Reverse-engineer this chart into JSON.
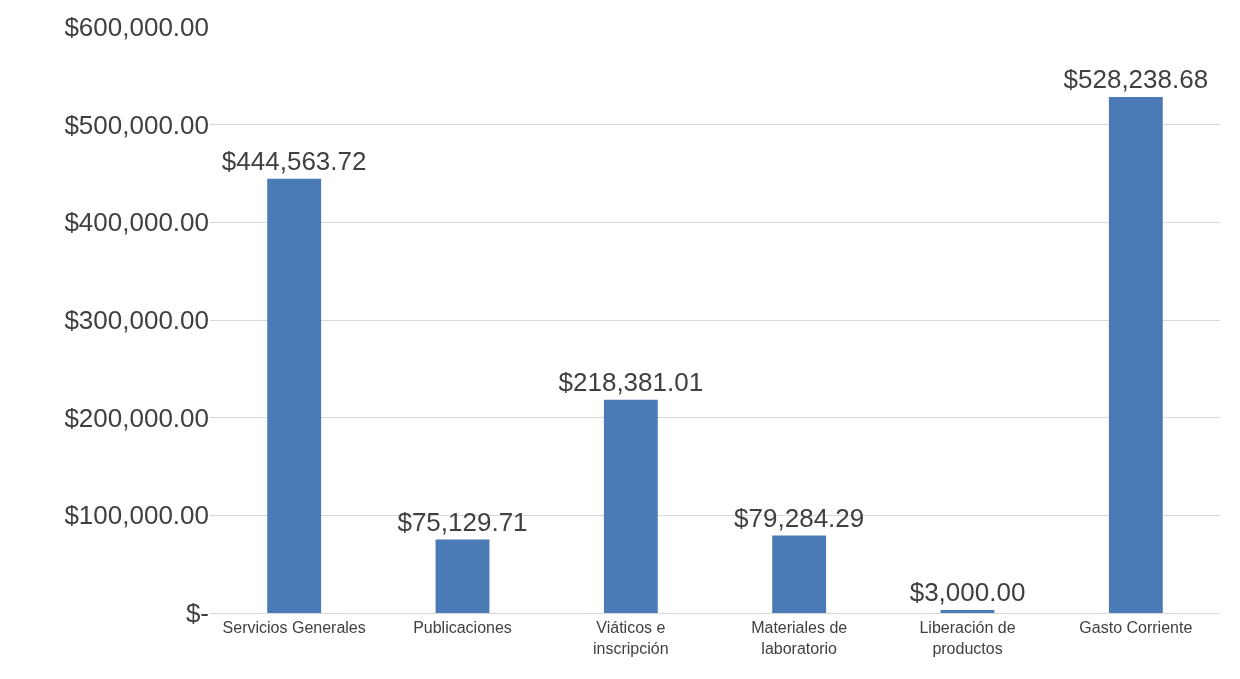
{
  "chart_data": {
    "type": "bar",
    "categories": [
      "Servicios Generales",
      "Publicaciones",
      "Viáticos e inscripción",
      "Materiales de laboratorio",
      "Liberación de productos",
      "Gasto Corriente"
    ],
    "values": [
      444563.72,
      75129.71,
      218381.01,
      79284.29,
      3000.0,
      528238.68
    ],
    "value_labels": [
      "$444,563.72",
      "$75,129.71",
      "$218,381.01",
      "$79,284.29",
      "$3,000.00",
      "$528,238.68"
    ],
    "color": "#4a7bb7",
    "ylim": [
      0,
      600000
    ],
    "yticks": [
      {
        "value": 0,
        "label": "$-"
      },
      {
        "value": 100000,
        "label": "$100,000.00"
      },
      {
        "value": 200000,
        "label": "$200,000.00"
      },
      {
        "value": 300000,
        "label": "$300,000.00"
      },
      {
        "value": 400000,
        "label": "$400,000.00"
      },
      {
        "value": 500000,
        "label": "$500,000.00"
      },
      {
        "value": 600000,
        "label": "$600,000.00"
      }
    ],
    "grid": "y",
    "legend": false
  }
}
